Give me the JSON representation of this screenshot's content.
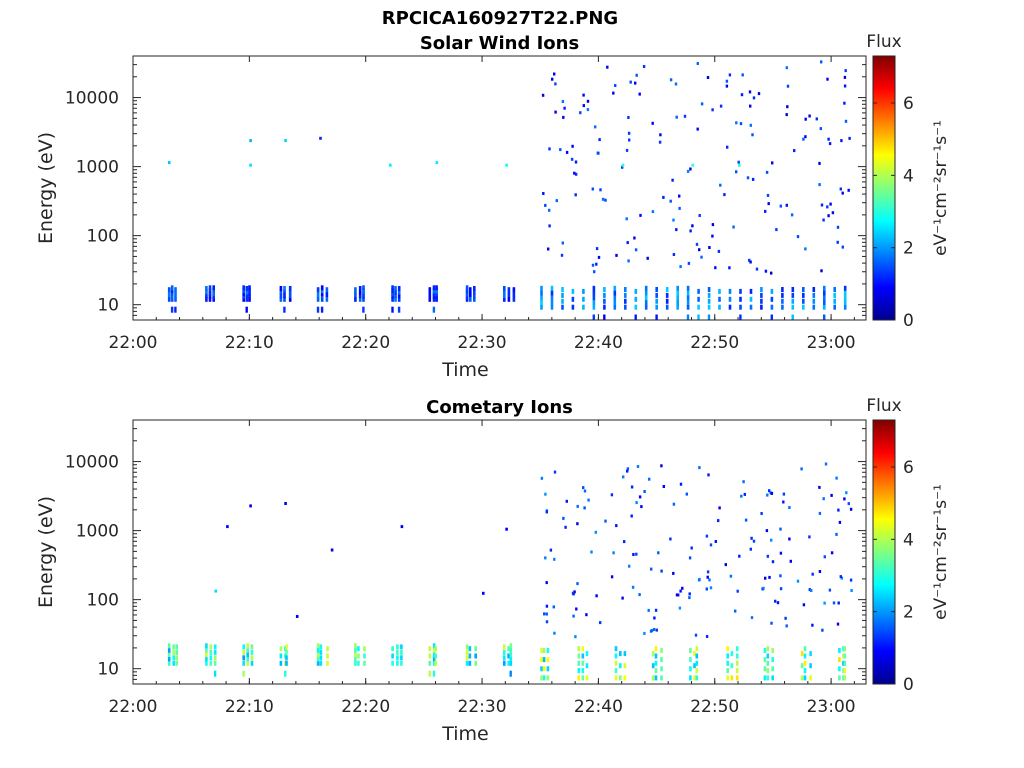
{
  "figure_title": "RPCICA160927T22.PNG",
  "colors": {
    "colormap": [
      "#00008f",
      "#0000ff",
      "#0080ff",
      "#00ffff",
      "#80ff80",
      "#ffff00",
      "#ff8000",
      "#ff0000",
      "#800000"
    ],
    "axes_line": "#262626",
    "background": "#ffffff"
  },
  "chart_data": [
    {
      "type": "heatmap",
      "title": "Solar Wind Ions",
      "xlabel": "Time",
      "ylabel": "Energy (eV)",
      "xlim": [
        "22:00",
        "23:03"
      ],
      "ylim": [
        6,
        40000
      ],
      "yscale": "log",
      "xticks": [
        "22:00",
        "22:10",
        "22:20",
        "22:30",
        "22:40",
        "22:50",
        "23:00"
      ],
      "yticks": [
        "10",
        "100",
        "1000",
        "10000"
      ],
      "grid": false,
      "colorbar": {
        "label": "Flux",
        "units": "eV⁻¹cm⁻²sr⁻¹s⁻¹",
        "range": [
          0,
          7.3
        ],
        "ticks": [
          "0",
          "2",
          "4",
          "6"
        ]
      },
      "clusters": [
        {
          "start": "22:03",
          "end": "22:35",
          "energy_min": 13,
          "energy_max": 21,
          "flux": 1.2,
          "spacing_min": 3.2,
          "note": "sparse low-energy bursts"
        },
        {
          "start": "22:35",
          "end": "23:02",
          "energy_min": 10,
          "energy_max": 22,
          "flux": 1.6,
          "spacing_min": 0.9,
          "note": "dense low-energy band"
        },
        {
          "start": "22:35",
          "end": "23:02",
          "energy_min": 30,
          "energy_max": 35000,
          "flux": 1.0,
          "density": "scattered",
          "note": "scattered counts at all energies"
        }
      ],
      "features": [
        {
          "time": "22:03",
          "energy": 1200,
          "flux": 2.3
        },
        {
          "time": "22:10",
          "energy": 2500,
          "flux": 2.2
        },
        {
          "time": "22:10",
          "energy": 1100,
          "flux": 2.5
        },
        {
          "time": "22:13",
          "energy": 2500,
          "flux": 2.4
        },
        {
          "time": "22:16",
          "energy": 2700,
          "flux": 1.2
        },
        {
          "time": "22:22",
          "energy": 1100,
          "flux": 2.6
        },
        {
          "time": "22:26",
          "energy": 1200,
          "flux": 2.6
        },
        {
          "time": "22:32",
          "energy": 1100,
          "flux": 2.8
        },
        {
          "time": "22:42",
          "energy": 1100,
          "flux": 3.0
        },
        {
          "time": "22:48",
          "energy": 1100,
          "flux": 3.0
        },
        {
          "time": "22:52",
          "energy": 1100,
          "flux": 3.0
        }
      ]
    },
    {
      "type": "heatmap",
      "title": "Cometary Ions",
      "xlabel": "Time",
      "ylabel": "Energy (eV)",
      "xlim": [
        "22:00",
        "23:03"
      ],
      "ylim": [
        6,
        40000
      ],
      "yscale": "log",
      "xticks": [
        "22:00",
        "22:10",
        "22:20",
        "22:30",
        "22:40",
        "22:50",
        "23:00"
      ],
      "yticks": [
        "10",
        "100",
        "1000",
        "10000"
      ],
      "grid": false,
      "colorbar": {
        "label": "Flux",
        "units": "eV⁻¹cm⁻²sr⁻¹s⁻¹",
        "range": [
          0,
          7.3
        ],
        "ticks": [
          "0",
          "2",
          "4",
          "6"
        ]
      },
      "clusters": [
        {
          "start": "22:03",
          "end": "22:35",
          "energy_min": 13,
          "energy_max": 27,
          "flux": 2.9,
          "spacing_min": 3.2,
          "note": "periodic low-energy bursts"
        },
        {
          "start": "22:35",
          "end": "23:02",
          "energy_min": 8,
          "energy_max": 27,
          "flux": 3.2,
          "spacing_min": 3.2,
          "note": "intense low-energy bursts"
        },
        {
          "start": "22:35",
          "end": "23:02",
          "energy_min": 30,
          "energy_max": 10000,
          "flux": 1.1,
          "density": "scattered",
          "note": "scattered counts at all energies"
        }
      ],
      "features": [
        {
          "time": "22:07",
          "energy": 140,
          "flux": 2.5
        },
        {
          "time": "22:08",
          "energy": 1200,
          "flux": 0.9
        },
        {
          "time": "22:10",
          "energy": 2400,
          "flux": 0.7
        },
        {
          "time": "22:13",
          "energy": 2600,
          "flux": 0.8
        },
        {
          "time": "22:14",
          "energy": 60,
          "flux": 0.9
        },
        {
          "time": "22:17",
          "energy": 550,
          "flux": 0.8
        },
        {
          "time": "22:23",
          "energy": 1200,
          "flux": 0.8
        },
        {
          "time": "22:30",
          "energy": 130,
          "flux": 0.9
        },
        {
          "time": "22:32",
          "energy": 1100,
          "flux": 0.9
        }
      ]
    }
  ]
}
